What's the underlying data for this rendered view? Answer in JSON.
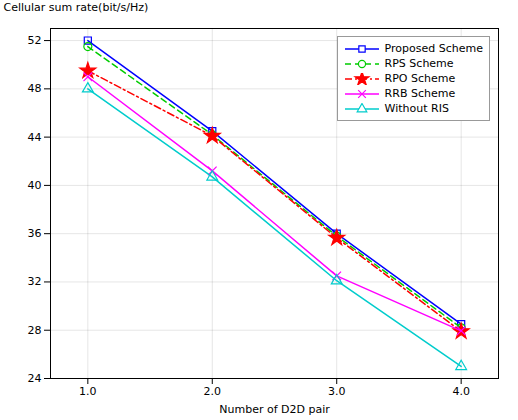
{
  "chart_data": {
    "type": "line",
    "x": [
      1,
      2,
      3,
      4
    ],
    "series": [
      {
        "name": "Proposed Scheme",
        "values": [
          52.0,
          44.5,
          36.0,
          28.5
        ],
        "color": "#0000FF",
        "line_style": "solid",
        "marker": "square"
      },
      {
        "name": "RPS Scheme",
        "values": [
          51.5,
          44.2,
          35.8,
          28.2
        ],
        "color": "#00CC00",
        "line_style": "dashed",
        "marker": "circle"
      },
      {
        "name": "RPO Scheme",
        "values": [
          49.5,
          44.1,
          35.65,
          27.9
        ],
        "color": "#FF0000",
        "line_style": "dashdot",
        "marker": "star"
      },
      {
        "name": "RRB Scheme",
        "values": [
          49.0,
          41.2,
          32.5,
          27.95
        ],
        "color": "#FF00FF",
        "line_style": "solid",
        "marker": "x"
      },
      {
        "name": "Without RIS",
        "values": [
          48.0,
          40.7,
          32.1,
          25.0
        ],
        "color": "#00CCCC",
        "line_style": "solid",
        "marker": "triangle"
      }
    ],
    "xlabel": "Number of D2D pair",
    "ylabel": "Cellular sum rate(bit/s/Hz)",
    "xlim": [
      0.7,
      4.3
    ],
    "ylim": [
      24,
      53
    ],
    "xticks": [
      1,
      2,
      3,
      4
    ],
    "yticks": [
      24,
      28,
      32,
      36,
      40,
      44,
      48,
      52
    ],
    "grid": true,
    "legend": "upper right"
  }
}
